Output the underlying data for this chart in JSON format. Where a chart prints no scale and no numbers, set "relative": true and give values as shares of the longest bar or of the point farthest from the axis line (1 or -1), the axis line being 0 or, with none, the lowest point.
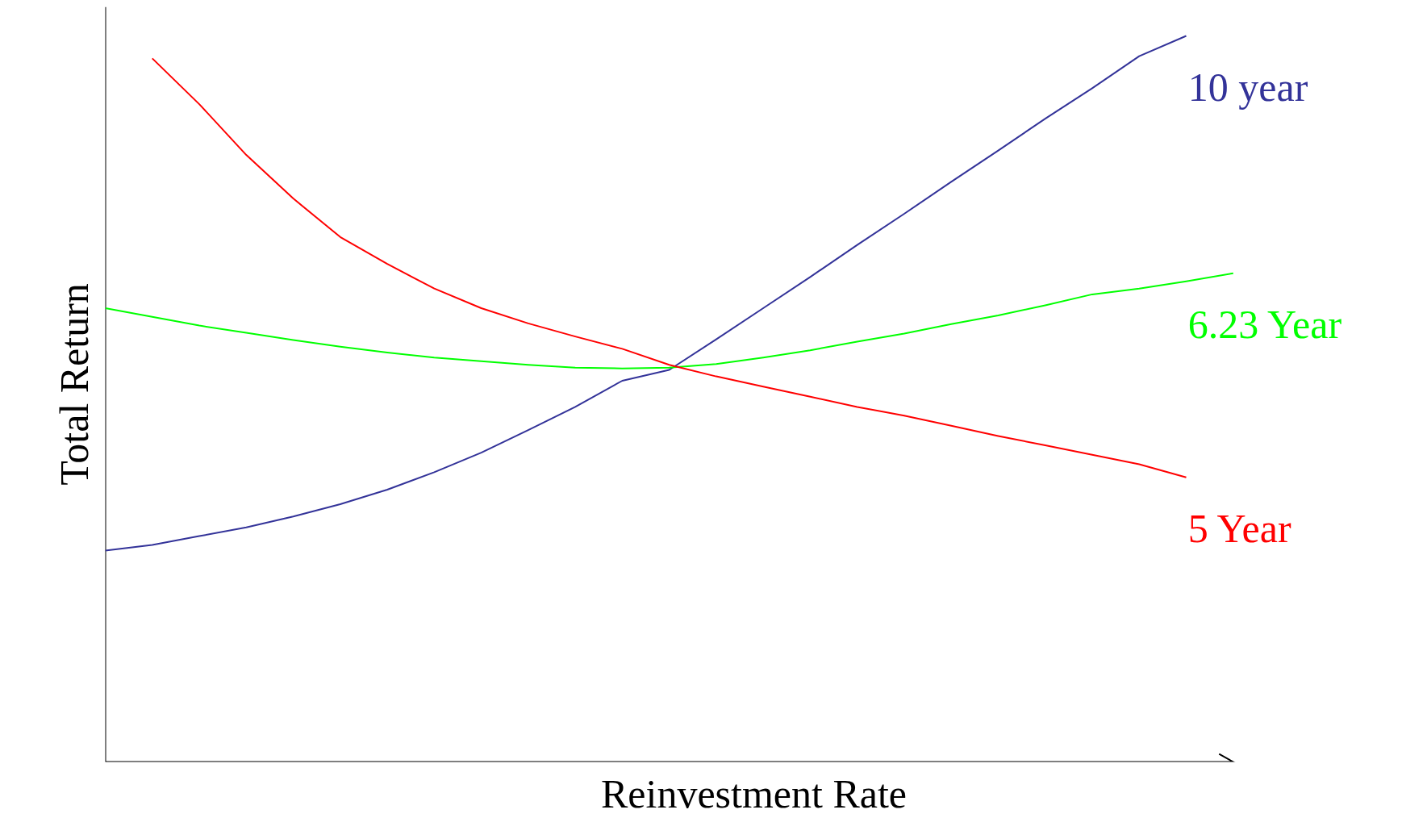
{
  "chart_data": {
    "type": "line",
    "relative": true,
    "xlabel": "Reinvestment Rate",
    "ylabel": "Total Return",
    "categories": [
      null,
      null,
      null,
      null,
      null,
      null,
      null,
      null,
      null,
      null,
      null,
      null,
      null,
      null,
      null,
      null,
      null,
      null,
      null,
      null,
      null,
      null,
      null,
      null,
      null
    ],
    "series": [
      {
        "name": "10 year",
        "color": "#333399",
        "values": [
          0.291,
          0.299,
          0.311,
          0.323,
          0.338,
          0.355,
          0.375,
          0.399,
          0.426,
          0.457,
          0.489,
          0.525,
          0.54,
          0.582,
          0.625,
          0.668,
          0.712,
          0.755,
          0.799,
          0.842,
          0.886,
          0.928,
          0.972,
          1.0,
          null
        ]
      },
      {
        "name": "6.23 Year",
        "color": "#00ff00",
        "values": [
          0.625,
          0.613,
          0.601,
          0.591,
          0.581,
          0.572,
          0.564,
          0.557,
          0.552,
          0.547,
          0.543,
          0.542,
          0.543,
          0.548,
          0.557,
          0.567,
          0.579,
          0.59,
          0.603,
          0.615,
          0.629,
          0.644,
          0.652,
          0.662,
          0.673
        ]
      },
      {
        "name": "5 Year",
        "color": "#ff0000",
        "values": [
          null,
          0.969,
          0.906,
          0.836,
          0.776,
          0.723,
          0.686,
          0.652,
          0.625,
          0.604,
          0.586,
          0.569,
          0.547,
          0.531,
          0.517,
          0.503,
          0.489,
          0.477,
          0.463,
          0.449,
          0.436,
          0.423,
          0.41,
          0.392,
          null
        ]
      }
    ],
    "grid": false,
    "marker": "none",
    "line_style": "solid"
  }
}
